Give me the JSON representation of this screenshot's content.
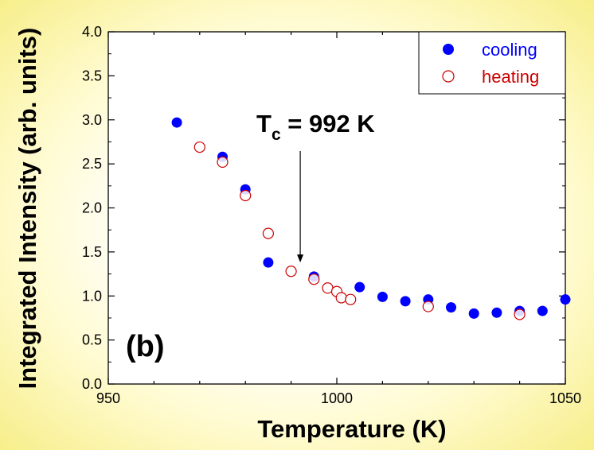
{
  "chart_data": {
    "type": "scatter",
    "xlabel": "Temperature  (K)",
    "ylabel": "Integrated Intensity (arb. units)",
    "xlim": [
      950,
      1050
    ],
    "ylim": [
      0.0,
      4.0
    ],
    "x_ticks": [
      950,
      1000,
      1050
    ],
    "x_tick_labels": [
      "950",
      "1000",
      "1050"
    ],
    "y_ticks": [
      0.0,
      0.5,
      1.0,
      1.5,
      2.0,
      2.5,
      3.0,
      3.5,
      4.0
    ],
    "y_tick_labels": [
      "0.0",
      "0.5",
      "1.0",
      "1.5",
      "2.0",
      "2.5",
      "3.0",
      "3.5",
      "4.0"
    ],
    "legend_placement": "top-right",
    "series": [
      {
        "name": "cooling",
        "marker": "filled-circle",
        "color": "#0000ff",
        "points": [
          [
            965,
            2.97
          ],
          [
            975,
            2.58
          ],
          [
            980,
            2.21
          ],
          [
            985,
            1.38
          ],
          [
            995,
            1.22
          ],
          [
            1005,
            1.1
          ],
          [
            1010,
            0.99
          ],
          [
            1015,
            0.94
          ],
          [
            1020,
            0.96
          ],
          [
            1025,
            0.87
          ],
          [
            1030,
            0.8
          ],
          [
            1035,
            0.81
          ],
          [
            1040,
            0.83
          ],
          [
            1045,
            0.83
          ],
          [
            1050,
            0.96
          ]
        ]
      },
      {
        "name": "heating",
        "marker": "open-circle",
        "color": "#cc0000",
        "points": [
          [
            970,
            2.69
          ],
          [
            975,
            2.52
          ],
          [
            980,
            2.14
          ],
          [
            985,
            1.71
          ],
          [
            990,
            1.28
          ],
          [
            995,
            1.19
          ],
          [
            998,
            1.09
          ],
          [
            1000,
            1.05
          ],
          [
            1001,
            0.98
          ],
          [
            1003,
            0.96
          ],
          [
            1020,
            0.88
          ],
          [
            1040,
            0.79
          ]
        ]
      }
    ],
    "annotations": {
      "tc_main": "T",
      "tc_sub": "c",
      "tc_value": " = 992 K",
      "tc_arrow_x": 992,
      "tc_arrow_y": 1.38,
      "panel_label": "(b)"
    },
    "grid": false
  }
}
